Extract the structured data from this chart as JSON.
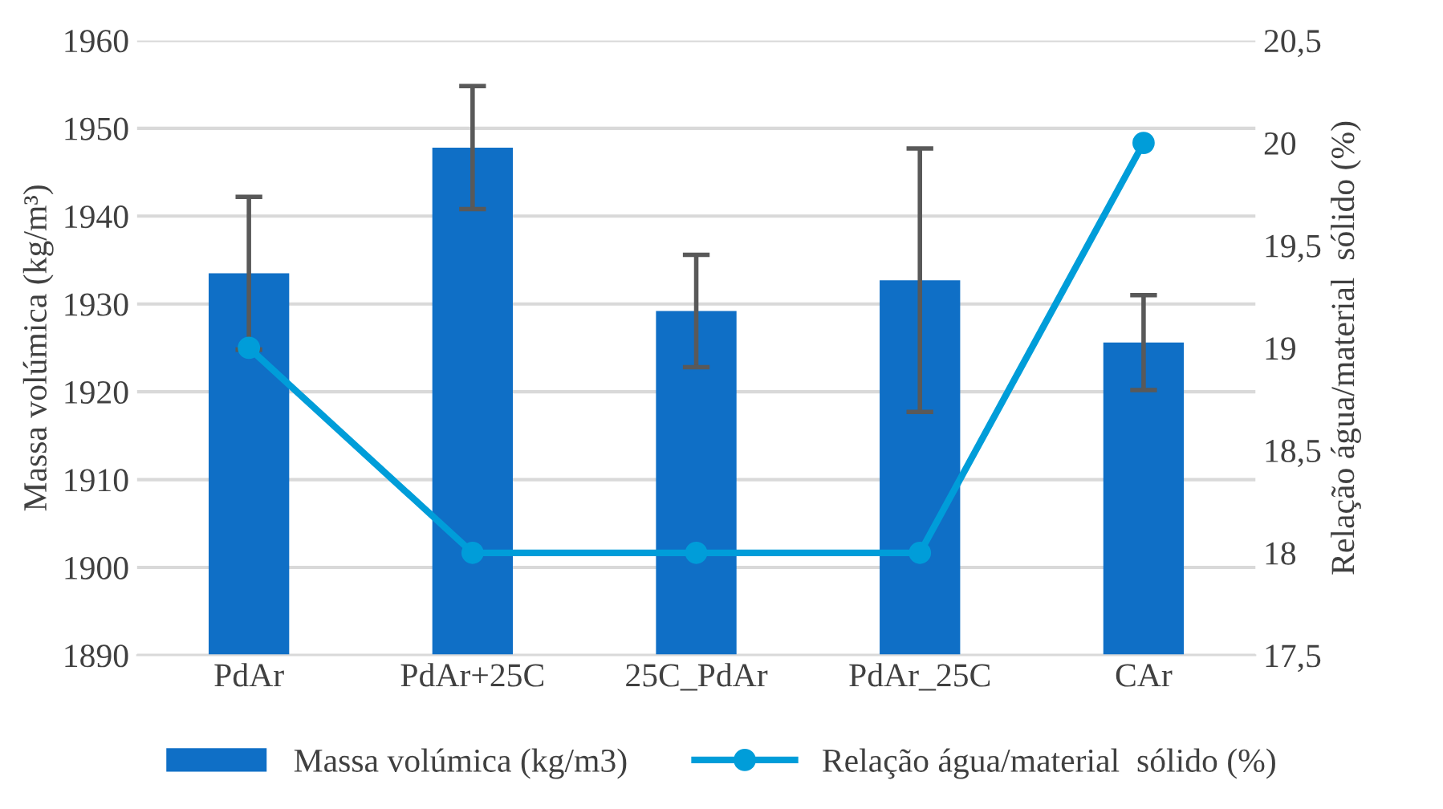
{
  "chart_data": {
    "type": "bar",
    "categories": [
      "PdAr",
      "PdAr+25C",
      "25C_PdAr",
      "PdAr_25C",
      "CAr"
    ],
    "series": [
      {
        "name": "Massa volúmica (kg/m3)",
        "color": "#0f6fc6",
        "values": [
          1933.5,
          1947.8,
          1929.2,
          1932.7,
          1925.6
        ],
        "errors": [
          8.7,
          7,
          6.4,
          15,
          5.4
        ]
      },
      {
        "name": "Relação água/material  sólido (%)",
        "type": "line",
        "axis": "y2",
        "color": "#009dd9",
        "values": [
          19,
          18,
          18,
          18,
          20
        ],
        "marker": "circle"
      }
    ],
    "ylabel": "Massa volúmica (kg/m³)",
    "y2label": "Relação água/material  sólido (%)",
    "ylim": [
      1890,
      1960
    ],
    "yticks": [
      1890,
      1900,
      1910,
      1920,
      1930,
      1940,
      1950,
      1960
    ],
    "y2lim": [
      17.5,
      20.5
    ],
    "y2ticks": [
      {
        "value": 17.5,
        "label": "17,5"
      },
      18,
      {
        "value": 18.5,
        "label": "18,5"
      },
      19,
      {
        "value": 19.5,
        "label": "19,5"
      },
      20,
      {
        "value": 20.5,
        "label": "20,5"
      }
    ],
    "grid": "y",
    "legend": "bottom"
  }
}
